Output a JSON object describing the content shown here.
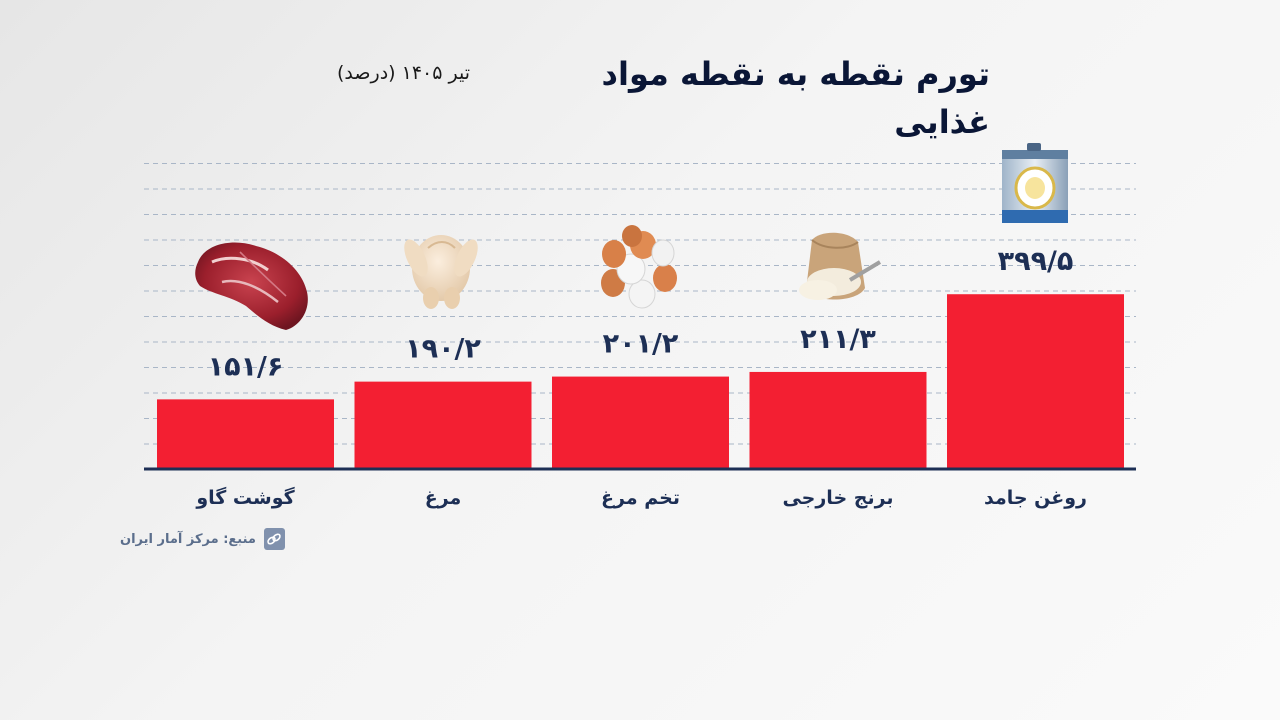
{
  "header": {
    "title": "تورم نقطه به نقطه مواد غذایی",
    "subtitle": "تیر ۱۴۰۵ (درصد)"
  },
  "source": {
    "text": "منبع: مرکز آمار ایران",
    "icon": "link-icon"
  },
  "colors": {
    "bar": "#f31f32",
    "text": "#1d2f55",
    "grid": "#a9b6c7"
  },
  "chart_data": {
    "type": "bar",
    "categories": [
      "گوشت گاو",
      "مرغ",
      "تخم مرغ",
      "برنج خارجی",
      "روغن جامد"
    ],
    "values": [
      151.6,
      190.2,
      201.2,
      211.3,
      399.5
    ],
    "value_labels": [
      "۱۵۱/۶",
      "۱۹۰/۲",
      "۲۰۱/۲",
      "۲۱۱/۳",
      "۳۹۹/۵"
    ],
    "category_icons": [
      "beef-icon",
      "chicken-icon",
      "eggs-icon",
      "rice-sack-icon",
      "oil-can-icon"
    ],
    "ylim": [
      0,
      400
    ],
    "grid": true,
    "legend": "none"
  }
}
